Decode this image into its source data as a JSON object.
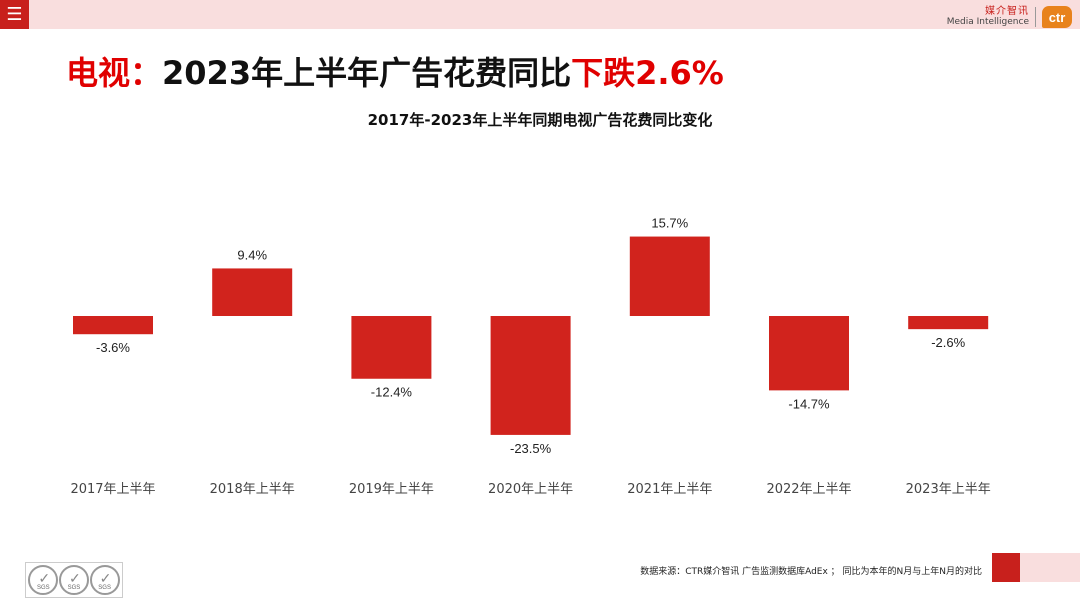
{
  "header": {
    "menu_icon": "☰",
    "logo_cn": "媒介智讯",
    "logo_en": "Media Intelligence",
    "logo_mark": "ctr"
  },
  "headline": {
    "prefix": "电视：",
    "main": "2023年上半年广告花费同比",
    "highlight": "下跌2.6%"
  },
  "chart_data": {
    "type": "bar",
    "title": "2017年-2023年上半年同期电视广告花费同比变化",
    "categories": [
      "2017年上半年",
      "2018年上半年",
      "2019年上半年",
      "2020年上半年",
      "2021年上半年",
      "2022年上半年",
      "2023年上半年"
    ],
    "values": [
      -3.6,
      9.4,
      -12.4,
      -23.5,
      15.7,
      -14.7,
      -2.6
    ],
    "value_labels": [
      "-3.6%",
      "9.4%",
      "-12.4%",
      "-23.5%",
      "15.7%",
      "-14.7%",
      "-2.6%"
    ],
    "unit": "%",
    "bar_color": "#d1231d",
    "ylim": [
      -25,
      18
    ]
  },
  "footer": {
    "source": "数据来源：CTR媒介智讯 广告监测数据库AdEx ； 同比为本年的N月与上年N月的对比",
    "seal_label": "SGS"
  }
}
